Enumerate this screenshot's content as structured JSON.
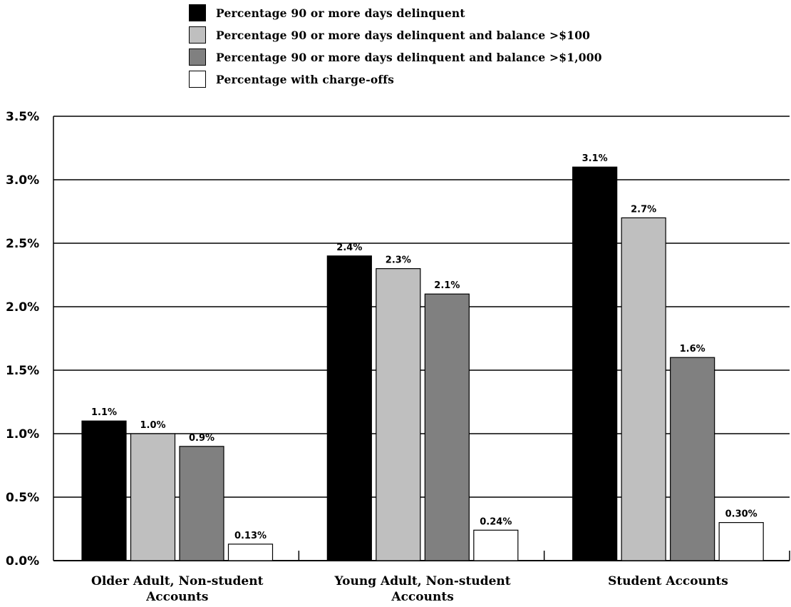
{
  "chart_data": {
    "type": "bar",
    "categories": [
      [
        "Older Adult, Non-student",
        "Accounts"
      ],
      [
        "Young Adult, Non-student",
        "Accounts"
      ],
      [
        "Student Accounts"
      ]
    ],
    "series": [
      {
        "name": "Percentage 90 or more days delinquent",
        "color": "#000000",
        "values": [
          1.1,
          2.4,
          3.1
        ],
        "labels": [
          "1.1%",
          "2.4%",
          "3.1%"
        ]
      },
      {
        "name": "Percentage 90 or more days delinquent and balance >$100",
        "color": "#bfbfbf",
        "values": [
          1.0,
          2.3,
          2.7
        ],
        "labels": [
          "1.0%",
          "2.3%",
          "2.7%"
        ]
      },
      {
        "name": "Percentage 90 or more days delinquent and balance >$1,000",
        "color": "#808080",
        "values": [
          0.9,
          2.1,
          1.6
        ],
        "labels": [
          "0.9%",
          "2.1%",
          "1.6%"
        ]
      },
      {
        "name": "Percentage with charge-offs",
        "color": "#ffffff",
        "values": [
          0.13,
          0.24,
          0.3
        ],
        "labels": [
          "0.13%",
          "0.24%",
          "0.30%"
        ]
      }
    ],
    "ylim": [
      0,
      3.5
    ],
    "yticks": [
      0.0,
      0.5,
      1.0,
      1.5,
      2.0,
      2.5,
      3.0,
      3.5
    ],
    "ytick_labels": [
      "0.0%",
      "0.5%",
      "1.0%",
      "1.5%",
      "2.0%",
      "2.5%",
      "3.0%",
      "3.5%"
    ],
    "grid": true,
    "legend_position": "top-center"
  }
}
